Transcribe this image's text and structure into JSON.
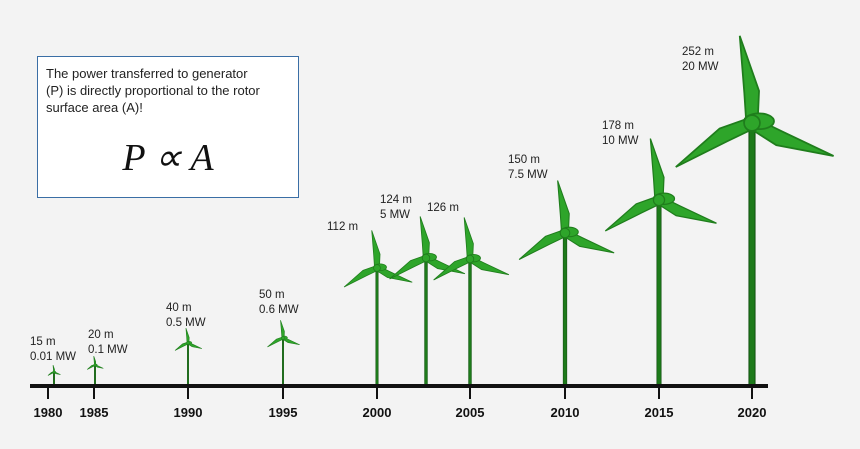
{
  "info": {
    "lines": [
      "The power transferred to generator",
      "(P) is directly proportional to the rotor",
      "surface area (A)!"
    ],
    "formula": "P ∝ A"
  },
  "colors": {
    "blade": "#2ea52a",
    "blade_dark": "#1f7d1c",
    "tower": "#1d7a1a",
    "axis": "#111111",
    "box_border": "#3a6ea5"
  },
  "turbines": [
    {
      "year": "1980",
      "diameter": "15 m",
      "power": "0.01 MW"
    },
    {
      "year": "1985",
      "diameter": "20 m",
      "power": "0.1 MW"
    },
    {
      "year": "1990",
      "diameter": "40 m",
      "power": "0.5 MW"
    },
    {
      "year": "1995",
      "diameter": "50 m",
      "power": "0.6 MW"
    },
    {
      "year": "2000",
      "diameter": "112 m",
      "power": ""
    },
    {
      "year": "",
      "diameter": "124 m",
      "power": "5 MW"
    },
    {
      "year": "2005",
      "diameter": "126 m",
      "power": ""
    },
    {
      "year": "2010",
      "diameter": "150 m",
      "power": "7.5 MW"
    },
    {
      "year": "2015",
      "diameter": "178 m",
      "power": "10 MW"
    },
    {
      "year": "2020",
      "diameter": "252 m",
      "power": "20 MW"
    }
  ]
}
